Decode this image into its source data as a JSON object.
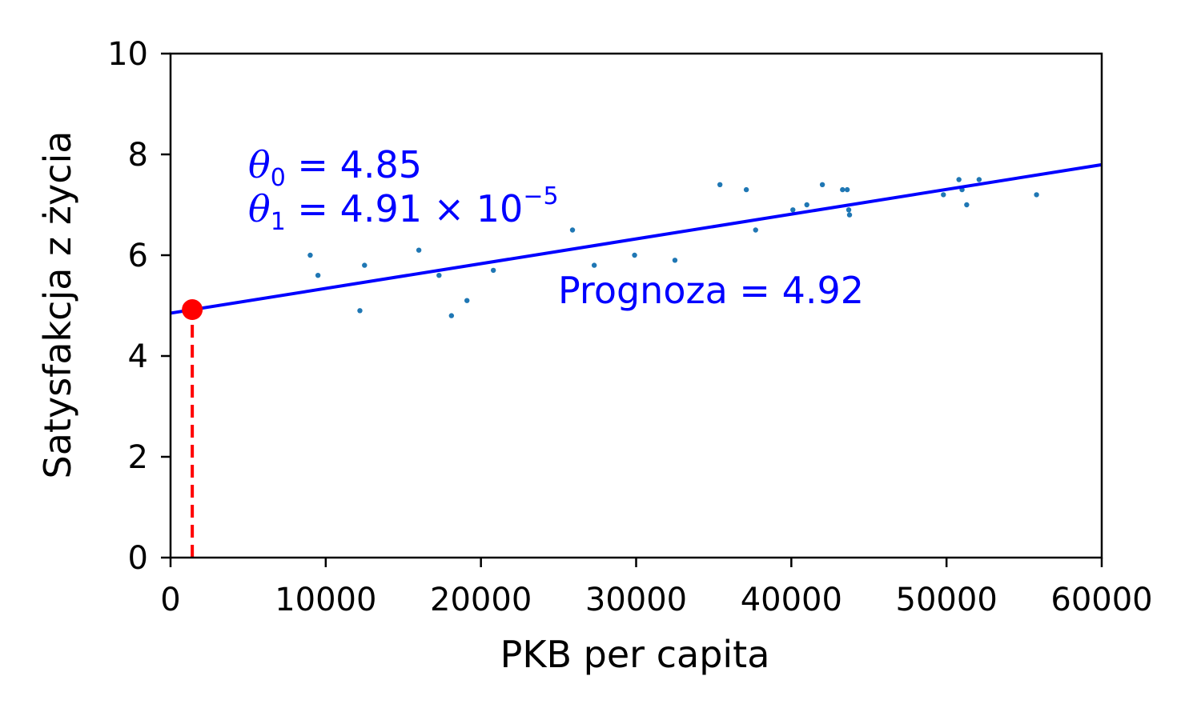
{
  "chart_data": {
    "type": "scatter",
    "xlabel": "PKB per capita",
    "ylabel": "Satysfakcja z życia",
    "xlim": [
      0,
      60000
    ],
    "ylim": [
      0,
      10
    ],
    "x_ticks": [
      "0",
      "10000",
      "20000",
      "30000",
      "40000",
      "50000",
      "60000"
    ],
    "y_ticks": [
      "0",
      "2",
      "4",
      "6",
      "8",
      "10"
    ],
    "grid": false,
    "colors": {
      "points": "#1f77b4",
      "fit_line": "#0000ff",
      "prediction": "#ff0000",
      "annotation": "#0000ff"
    },
    "points": [
      {
        "x": 9000,
        "y": 6.0
      },
      {
        "x": 9500,
        "y": 5.6
      },
      {
        "x": 12200,
        "y": 4.9
      },
      {
        "x": 12500,
        "y": 5.8
      },
      {
        "x": 16000,
        "y": 6.1
      },
      {
        "x": 17300,
        "y": 5.6
      },
      {
        "x": 18100,
        "y": 4.8
      },
      {
        "x": 19100,
        "y": 5.1
      },
      {
        "x": 20800,
        "y": 5.7
      },
      {
        "x": 25900,
        "y": 6.5
      },
      {
        "x": 27300,
        "y": 5.8
      },
      {
        "x": 29900,
        "y": 6.0
      },
      {
        "x": 32500,
        "y": 5.9
      },
      {
        "x": 35400,
        "y": 7.4
      },
      {
        "x": 37100,
        "y": 7.3
      },
      {
        "x": 37700,
        "y": 6.5
      },
      {
        "x": 40100,
        "y": 6.9
      },
      {
        "x": 41000,
        "y": 7.0
      },
      {
        "x": 42000,
        "y": 7.4
      },
      {
        "x": 43300,
        "y": 7.3
      },
      {
        "x": 43600,
        "y": 7.3
      },
      {
        "x": 43700,
        "y": 6.9
      },
      {
        "x": 43750,
        "y": 6.8
      },
      {
        "x": 49800,
        "y": 7.2
      },
      {
        "x": 50800,
        "y": 7.5
      },
      {
        "x": 51000,
        "y": 7.3
      },
      {
        "x": 51300,
        "y": 7.0
      },
      {
        "x": 52100,
        "y": 7.5
      },
      {
        "x": 55800,
        "y": 7.2
      }
    ],
    "fit_line": {
      "theta0": 4.85,
      "theta1": 4.91e-05
    },
    "prediction": {
      "x": 1400,
      "y": 4.92
    },
    "annotations": {
      "theta0": {
        "symbol": "θ",
        "subscript": "0",
        "text": " = 4.85"
      },
      "theta1": {
        "symbol": "θ",
        "subscript": "1",
        "text": " = 4.91 × 10",
        "superscript": "−5"
      },
      "prediction": "Prognoza = 4.92"
    }
  }
}
